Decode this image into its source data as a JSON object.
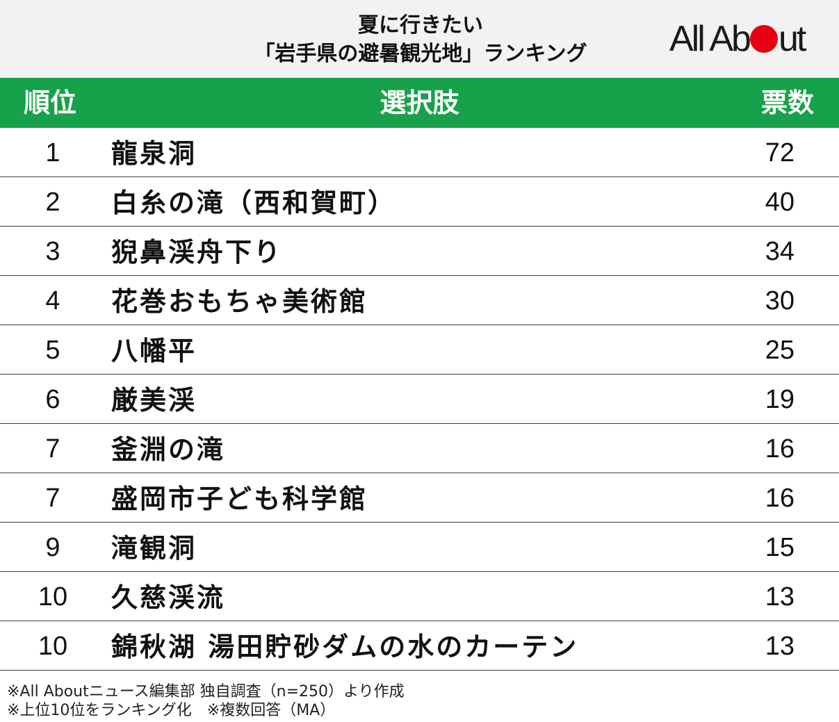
{
  "header": {
    "title_line1": "夏に行きたい",
    "title_line2": "「岩手県の避暑観光地」ランキング",
    "logo_left": "All Ab",
    "logo_right": "ut"
  },
  "table": {
    "columns": {
      "rank": "順位",
      "choice": "選択肢",
      "votes": "票数"
    },
    "rows": [
      {
        "rank": "1",
        "name": "龍泉洞",
        "votes": "72"
      },
      {
        "rank": "2",
        "name": "白糸の滝（西和賀町）",
        "votes": "40"
      },
      {
        "rank": "3",
        "name": "猊鼻渓舟下り",
        "votes": "34"
      },
      {
        "rank": "4",
        "name": "花巻おもちゃ美術館",
        "votes": "30"
      },
      {
        "rank": "5",
        "name": "八幡平",
        "votes": "25"
      },
      {
        "rank": "6",
        "name": "厳美渓",
        "votes": "19"
      },
      {
        "rank": "7",
        "name": "釜淵の滝",
        "votes": "16"
      },
      {
        "rank": "7",
        "name": "盛岡市子ども科学館",
        "votes": "16"
      },
      {
        "rank": "9",
        "name": "滝観洞",
        "votes": "15"
      },
      {
        "rank": "10",
        "name": "久慈渓流",
        "votes": "13"
      },
      {
        "rank": "10",
        "name": "錦秋湖 湯田貯砂ダムの水のカーテン",
        "votes": "13"
      }
    ]
  },
  "footer": {
    "line1": "※All Aboutニュース編集部 独自調査（n=250）より作成",
    "line2": "※上位10位をランキング化　※複数回答（MA）"
  },
  "colors": {
    "header_bg": "#f2f2f2",
    "table_header_bg": "#17a14a",
    "logo_dot": "#e60012"
  }
}
